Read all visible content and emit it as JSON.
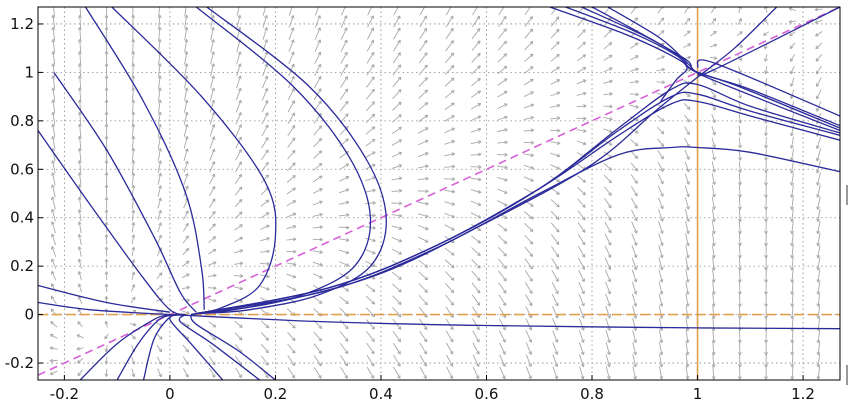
{
  "chart_data": {
    "type": "line",
    "title": "",
    "xlabel": "",
    "ylabel": "",
    "xlim": [
      -0.25,
      1.27
    ],
    "ylim": [
      -0.27,
      1.27
    ],
    "grid": true,
    "x_ticks": [
      {
        "value": -0.2,
        "label": "-0.2"
      },
      {
        "value": 0,
        "label": "0"
      },
      {
        "value": 0.2,
        "label": "0.2"
      },
      {
        "value": 0.4,
        "label": "0.4"
      },
      {
        "value": 0.6,
        "label": "0.6"
      },
      {
        "value": 0.8,
        "label": "0.8"
      },
      {
        "value": 1,
        "label": "1"
      },
      {
        "value": 1.2,
        "label": "1.2"
      }
    ],
    "y_ticks": [
      {
        "value": -0.2,
        "label": "-0.2"
      },
      {
        "value": 0,
        "label": "0"
      },
      {
        "value": 0.2,
        "label": "0.2"
      },
      {
        "value": 0.4,
        "label": "0.4"
      },
      {
        "value": 0.6,
        "label": "0.6"
      },
      {
        "value": 0.8,
        "label": "0.8"
      },
      {
        "value": 1,
        "label": "1"
      },
      {
        "value": 1.2,
        "label": "1.2"
      }
    ],
    "reference_lines": [
      {
        "kind": "diagonal",
        "from": [
          -0.25,
          -0.25
        ],
        "to": [
          1.27,
          1.27
        ],
        "style": "dashed",
        "color": "#d660d6"
      },
      {
        "kind": "horizontal",
        "y": 0,
        "style": "dashed",
        "color": "#e0a050"
      },
      {
        "kind": "vertical",
        "x": 1,
        "style": "solid",
        "color": "#e0a050"
      }
    ],
    "field_color": "#a8a8a8",
    "trajectory_color": "#2a2a9a",
    "trajectories": [
      {
        "points": [
          [
            -0.25,
            0.12
          ],
          [
            -0.12,
            0.05
          ],
          [
            0,
            0.01
          ]
        ]
      },
      {
        "points": [
          [
            -0.25,
            0.76
          ],
          [
            -0.15,
            0.45
          ],
          [
            -0.05,
            0.15
          ],
          [
            0,
            0.02
          ],
          [
            0.03,
            0
          ]
        ]
      },
      {
        "points": [
          [
            -0.22,
            1.0
          ],
          [
            -0.12,
            0.68
          ],
          [
            -0.03,
            0.32
          ],
          [
            0.02,
            0.09
          ],
          [
            0.05,
            0.01
          ]
        ]
      },
      {
        "points": [
          [
            -0.16,
            1.27
          ],
          [
            -0.05,
            0.88
          ],
          [
            0.03,
            0.5
          ],
          [
            0.06,
            0.19
          ],
          [
            0.065,
            0.02
          ]
        ]
      },
      {
        "points": [
          [
            -0.11,
            1.27
          ],
          [
            0.06,
            0.9
          ],
          [
            0.18,
            0.55
          ],
          [
            0.2,
            0.32
          ],
          [
            0.17,
            0.12
          ],
          [
            0.1,
            0.03
          ],
          [
            0.05,
            0.005
          ]
        ]
      },
      {
        "points": [
          [
            0.05,
            1.27
          ],
          [
            0.23,
            0.95
          ],
          [
            0.34,
            0.65
          ],
          [
            0.38,
            0.4
          ],
          [
            0.35,
            0.2
          ],
          [
            0.25,
            0.08
          ],
          [
            0.12,
            0.02
          ],
          [
            0.05,
            0.005
          ]
        ]
      },
      {
        "points": [
          [
            0.07,
            1.27
          ],
          [
            0.26,
            0.95
          ],
          [
            0.37,
            0.65
          ],
          [
            0.41,
            0.4
          ],
          [
            0.38,
            0.2
          ],
          [
            0.28,
            0.08
          ],
          [
            0.15,
            0.02
          ],
          [
            0.06,
            0.005
          ]
        ]
      },
      {
        "points": [
          [
            -0.25,
            0.05
          ],
          [
            -0.15,
            0.02
          ],
          [
            0,
            0
          ]
        ]
      },
      {
        "points": [
          [
            -0.17,
            -0.27
          ],
          [
            -0.1,
            -0.12
          ],
          [
            -0.03,
            -0.02
          ],
          [
            0,
            0
          ]
        ]
      },
      {
        "points": [
          [
            -0.1,
            -0.27
          ],
          [
            -0.06,
            -0.12
          ],
          [
            -0.02,
            -0.02
          ],
          [
            0.01,
            0
          ]
        ]
      },
      {
        "points": [
          [
            -0.05,
            -0.27
          ],
          [
            -0.03,
            -0.1
          ],
          [
            0,
            -0.01
          ],
          [
            0.02,
            0
          ]
        ]
      },
      {
        "points": [
          [
            0.1,
            -0.27
          ],
          [
            0.04,
            -0.12
          ],
          [
            0,
            -0.02
          ],
          [
            0.02,
            0
          ]
        ]
      },
      {
        "points": [
          [
            0.17,
            -0.27
          ],
          [
            0.08,
            -0.12
          ],
          [
            0.02,
            -0.03
          ],
          [
            0.03,
            0
          ]
        ]
      },
      {
        "points": [
          [
            0.2,
            -0.27
          ],
          [
            0.13,
            -0.15
          ],
          [
            0.05,
            -0.04
          ],
          [
            0.04,
            0
          ]
        ]
      },
      {
        "points": [
          [
            0,
            0
          ],
          [
            0.3,
            -0.03
          ],
          [
            0.6,
            -0.045
          ],
          [
            1.0,
            -0.055
          ],
          [
            1.27,
            -0.058
          ]
        ]
      },
      {
        "points": [
          [
            0.04,
            0
          ],
          [
            0.2,
            0.05
          ],
          [
            0.4,
            0.17
          ],
          [
            0.6,
            0.38
          ],
          [
            0.8,
            0.62
          ],
          [
            0.92,
            0.84
          ],
          [
            1.0,
            0.98
          ],
          [
            1.07,
            1.1
          ],
          [
            1.15,
            1.27
          ]
        ]
      },
      {
        "points": [
          [
            0.04,
            0
          ],
          [
            0.3,
            0.1
          ],
          [
            0.5,
            0.27
          ],
          [
            0.7,
            0.5
          ],
          [
            0.85,
            0.66
          ],
          [
            0.95,
            0.69
          ],
          [
            1.0,
            0.69
          ],
          [
            1.1,
            0.67
          ],
          [
            1.27,
            0.59
          ]
        ]
      },
      {
        "points": [
          [
            0.04,
            0
          ],
          [
            0.3,
            0.11
          ],
          [
            0.5,
            0.28
          ],
          [
            0.7,
            0.52
          ],
          [
            0.85,
            0.74
          ],
          [
            0.95,
            0.87
          ],
          [
            1.0,
            0.88
          ],
          [
            1.1,
            0.82
          ],
          [
            1.27,
            0.72
          ]
        ]
      },
      {
        "points": [
          [
            0.04,
            0
          ],
          [
            0.3,
            0.11
          ],
          [
            0.5,
            0.28
          ],
          [
            0.7,
            0.52
          ],
          [
            0.85,
            0.76
          ],
          [
            0.95,
            0.9
          ],
          [
            1.0,
            0.91
          ],
          [
            1.1,
            0.84
          ],
          [
            1.27,
            0.74
          ]
        ]
      },
      {
        "points": [
          [
            0.04,
            0
          ],
          [
            0.3,
            0.11
          ],
          [
            0.5,
            0.28
          ],
          [
            0.7,
            0.52
          ],
          [
            0.85,
            0.77
          ],
          [
            0.95,
            0.93
          ],
          [
            1.0,
            0.95
          ],
          [
            1.1,
            0.86
          ],
          [
            1.27,
            0.75
          ]
        ]
      },
      {
        "points": [
          [
            0.75,
            1.27
          ],
          [
            0.88,
            1.16
          ],
          [
            0.96,
            1.07
          ],
          [
            0.99,
            1.01
          ],
          [
            1.05,
            0.95
          ],
          [
            1.27,
            0.76
          ]
        ]
      },
      {
        "points": [
          [
            0.78,
            1.27
          ],
          [
            0.9,
            1.15
          ],
          [
            0.97,
            1.06
          ],
          [
            0.99,
            1.01
          ],
          [
            1.08,
            0.94
          ],
          [
            1.27,
            0.77
          ]
        ]
      },
      {
        "points": [
          [
            0.8,
            1.27
          ],
          [
            0.91,
            1.14
          ],
          [
            0.98,
            1.05
          ],
          [
            1.0,
            1.0
          ],
          [
            1.1,
            0.93
          ],
          [
            1.27,
            0.78
          ]
        ]
      },
      {
        "points": [
          [
            0.72,
            1.27
          ],
          [
            0.86,
            1.16
          ],
          [
            0.95,
            1.07
          ],
          [
            0.98,
            1.02
          ],
          [
            0.96,
            0.97
          ],
          [
            0.93,
            0.88
          ]
        ]
      },
      {
        "points": [
          [
            0.83,
            1.27
          ],
          [
            0.93,
            1.14
          ],
          [
            0.98,
            1.04
          ],
          [
            1.0,
            1.0
          ],
          [
            1.03,
            1.01
          ],
          [
            1.27,
            1.27
          ]
        ]
      },
      {
        "points": [
          [
            1.0,
            1.02
          ],
          [
            1.03,
            1.04
          ],
          [
            1.27,
            0.82
          ]
        ]
      }
    ]
  }
}
